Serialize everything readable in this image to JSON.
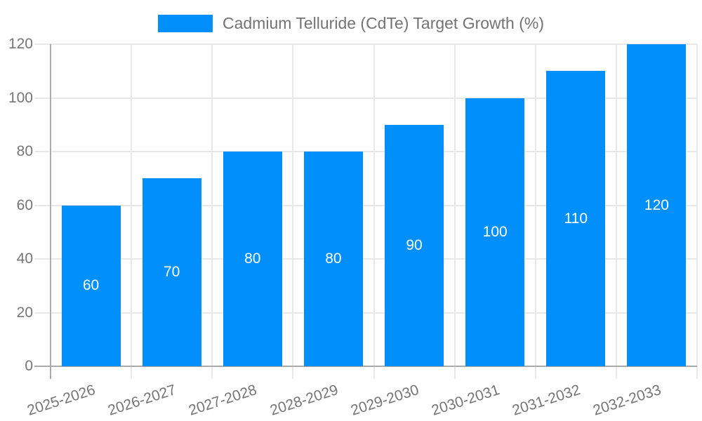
{
  "chart_data": {
    "type": "bar",
    "title": "Cadmium Telluride (CdTe) Target Growth (%)",
    "categories": [
      "2025-2026",
      "2026-2027",
      "2027-2028",
      "2028-2029",
      "2029-2030",
      "2030-2031",
      "2031-2032",
      "2032-2033"
    ],
    "values": [
      60,
      70,
      80,
      80,
      90,
      100,
      110,
      120
    ],
    "xlabel": "",
    "ylabel": "",
    "ylim": [
      0,
      120
    ],
    "yticks": [
      0,
      20,
      40,
      60,
      80,
      100,
      120
    ],
    "grid": true,
    "legend_position": "top",
    "value_labels": "inside-center",
    "colors": {
      "bar": "#008ffb",
      "value_label": "#ffffff",
      "axis_text": "#757575",
      "legend_text": "#737373",
      "gridline": "#e8e8e8",
      "axis_line": "#ababab"
    }
  }
}
